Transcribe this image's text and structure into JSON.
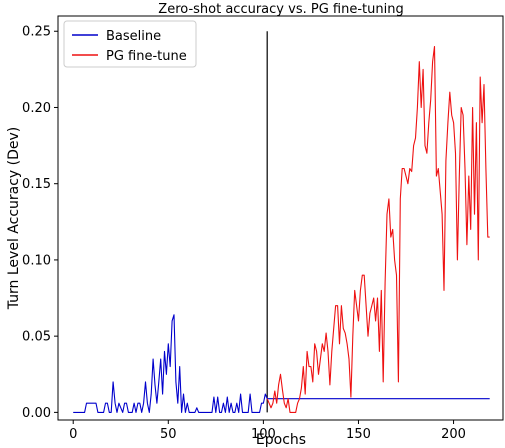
{
  "chart_data": {
    "type": "line",
    "title": "Zero-shot accuracy vs. PG fine-tuning",
    "xlabel": "Epochs",
    "ylabel": "Turn Level Accuracy (Dev)",
    "xlim": [
      -8,
      226
    ],
    "ylim": [
      -0.005,
      0.26
    ],
    "xticks": [
      0,
      50,
      100,
      150,
      200
    ],
    "xtick_labels": [
      "0",
      "50",
      "100",
      "150",
      "200"
    ],
    "yticks": [
      0.0,
      0.05,
      0.1,
      0.15,
      0.2,
      0.25
    ],
    "ytick_labels": [
      "0.00",
      "0.05",
      "0.10",
      "0.15",
      "0.20",
      "0.25"
    ],
    "grid": false,
    "legend_position": "top-left",
    "vline": {
      "x": 102,
      "y": [
        0,
        0.25
      ],
      "color": "#000000"
    },
    "series": [
      {
        "name": "Baseline",
        "color": "#0000cc",
        "x": [
          0,
          6,
          7,
          8,
          9,
          10,
          11,
          12,
          13,
          14,
          15,
          16,
          17,
          18,
          19,
          20,
          21,
          22,
          23,
          24,
          25,
          26,
          27,
          28,
          29,
          30,
          31,
          32,
          33,
          34,
          35,
          36,
          37,
          38,
          39,
          40,
          41,
          42,
          43,
          44,
          45,
          46,
          47,
          48,
          49,
          50,
          51,
          52,
          53,
          54,
          55,
          56,
          57,
          58,
          59,
          60,
          61,
          62,
          63,
          64,
          65,
          66,
          67,
          68,
          69,
          70,
          71,
          72,
          73,
          74,
          75,
          76,
          77,
          78,
          79,
          80,
          81,
          82,
          83,
          84,
          85,
          86,
          87,
          88,
          89,
          90,
          91,
          92,
          93,
          94,
          95,
          96,
          97,
          98,
          99,
          100,
          101,
          102,
          120,
          219
        ],
        "y": [
          0,
          0,
          0.006,
          0.006,
          0.006,
          0.006,
          0.006,
          0.006,
          0,
          0,
          0,
          0,
          0.006,
          0.006,
          0,
          0,
          0.02,
          0.006,
          0,
          0.006,
          0.003,
          0,
          0.006,
          0.006,
          0,
          0,
          0,
          0.006,
          0,
          0.006,
          0.006,
          0,
          0.006,
          0.02,
          0.006,
          0,
          0.012,
          0.035,
          0.018,
          0.006,
          0.02,
          0.035,
          0.012,
          0.04,
          0.025,
          0.045,
          0.03,
          0.06,
          0.064,
          0.02,
          0.006,
          0.03,
          0,
          0.012,
          0,
          0.006,
          0,
          0,
          0,
          0,
          0.003,
          0,
          0,
          0,
          0,
          0,
          0,
          0,
          0,
          0.01,
          0,
          0.01,
          0,
          0,
          0.006,
          0,
          0.01,
          0,
          0.006,
          0,
          0,
          0.006,
          0,
          0.012,
          0,
          0,
          0,
          0,
          0.012,
          0,
          0,
          0,
          0,
          0,
          0.006,
          0.006,
          0.012,
          0.009,
          0.009,
          0.009
        ]
      },
      {
        "name": "PG fine-tune",
        "color": "#ee1111",
        "x": [
          102,
          103,
          104,
          105,
          106,
          107,
          108,
          109,
          110,
          111,
          112,
          113,
          114,
          115,
          116,
          117,
          118,
          119,
          120,
          121,
          122,
          123,
          124,
          125,
          126,
          127,
          128,
          129,
          130,
          131,
          132,
          133,
          134,
          135,
          136,
          137,
          138,
          139,
          140,
          141,
          142,
          143,
          144,
          145,
          146,
          147,
          148,
          149,
          150,
          151,
          152,
          153,
          154,
          155,
          156,
          157,
          158,
          159,
          160,
          161,
          162,
          163,
          164,
          165,
          166,
          167,
          168,
          169,
          170,
          171,
          172,
          173,
          174,
          175,
          176,
          177,
          178,
          179,
          180,
          181,
          182,
          183,
          184,
          185,
          186,
          187,
          188,
          189,
          190,
          191,
          192,
          193,
          194,
          195,
          196,
          197,
          198,
          199,
          200,
          201,
          202,
          203,
          204,
          205,
          206,
          207,
          208,
          209,
          210,
          211,
          212,
          213,
          214,
          215,
          216,
          217,
          218,
          219
        ],
        "y": [
          0.009,
          0.006,
          0.003,
          0.006,
          0.014,
          0.006,
          0.018,
          0.025,
          0.015,
          0.006,
          0.003,
          0.009,
          0.0,
          0.0,
          0.0,
          0.0,
          0.006,
          0.009,
          0.016,
          0.03,
          0.012,
          0.04,
          0.03,
          0.03,
          0.02,
          0.045,
          0.04,
          0.025,
          0.035,
          0.045,
          0.04,
          0.052,
          0.04,
          0.018,
          0.04,
          0.055,
          0.07,
          0.07,
          0.045,
          0.07,
          0.055,
          0.052,
          0.045,
          0.035,
          0.01,
          0.05,
          0.08,
          0.07,
          0.06,
          0.08,
          0.09,
          0.09,
          0.07,
          0.05,
          0.065,
          0.07,
          0.075,
          0.06,
          0.075,
          0.04,
          0.08,
          0.02,
          0.085,
          0.13,
          0.14,
          0.115,
          0.12,
          0.1,
          0.09,
          0.02,
          0.14,
          0.16,
          0.16,
          0.155,
          0.15,
          0.16,
          0.158,
          0.175,
          0.18,
          0.2,
          0.23,
          0.2,
          0.225,
          0.175,
          0.17,
          0.19,
          0.205,
          0.23,
          0.24,
          0.155,
          0.16,
          0.145,
          0.13,
          0.08,
          0.165,
          0.19,
          0.21,
          0.195,
          0.19,
          0.17,
          0.1,
          0.155,
          0.2,
          0.195,
          0.16,
          0.11,
          0.155,
          0.12,
          0.2,
          0.13,
          0.19,
          0.1,
          0.22,
          0.19,
          0.215,
          0.16,
          0.115,
          0.115
        ]
      }
    ]
  }
}
